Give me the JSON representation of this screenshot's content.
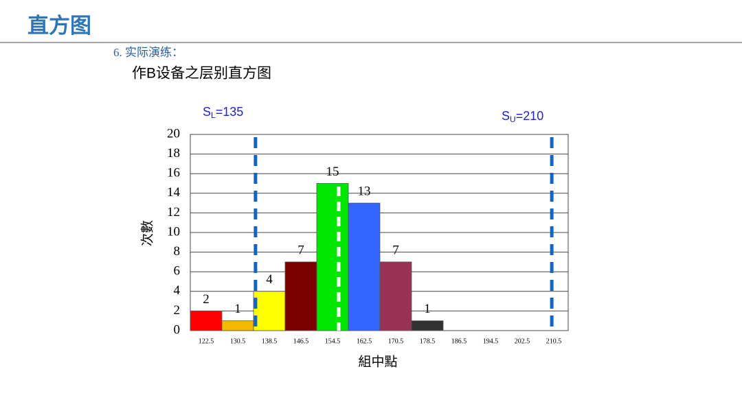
{
  "header": {
    "title": "直方图",
    "section": "6. 实际演练：",
    "heading": "作B设备之层别直方图"
  },
  "chart_data": {
    "type": "bar",
    "categories": [
      "122.5",
      "130.5",
      "138.5",
      "146.5",
      "154.5",
      "162.5",
      "170.5",
      "178.5",
      "186.5",
      "194.5",
      "202.5",
      "210.5"
    ],
    "values": [
      2,
      1,
      4,
      7,
      15,
      13,
      7,
      1,
      0,
      0,
      0,
      0
    ],
    "colors": [
      "#ff0000",
      "#f5b800",
      "#ffff00",
      "#7a0000",
      "#00e600",
      "#3366ff",
      "#993355",
      "#333333",
      "#333333",
      "#333333",
      "#333333",
      "#333333"
    ],
    "xlabel": "組中點",
    "ylabel": "次數",
    "xlim": [
      118.5,
      214.5
    ],
    "ylim": [
      0,
      20
    ],
    "yticks": [
      0,
      2,
      4,
      6,
      8,
      10,
      12,
      14,
      16,
      18,
      20
    ],
    "grid": true,
    "spec_limits": [
      {
        "symbol": "S",
        "subscript": "L",
        "text": "=135",
        "value": 135,
        "color": "#1565c0"
      },
      {
        "symbol": "S",
        "subscript": "U",
        "text": "=210",
        "value": 210,
        "color": "#1565c0"
      }
    ]
  }
}
